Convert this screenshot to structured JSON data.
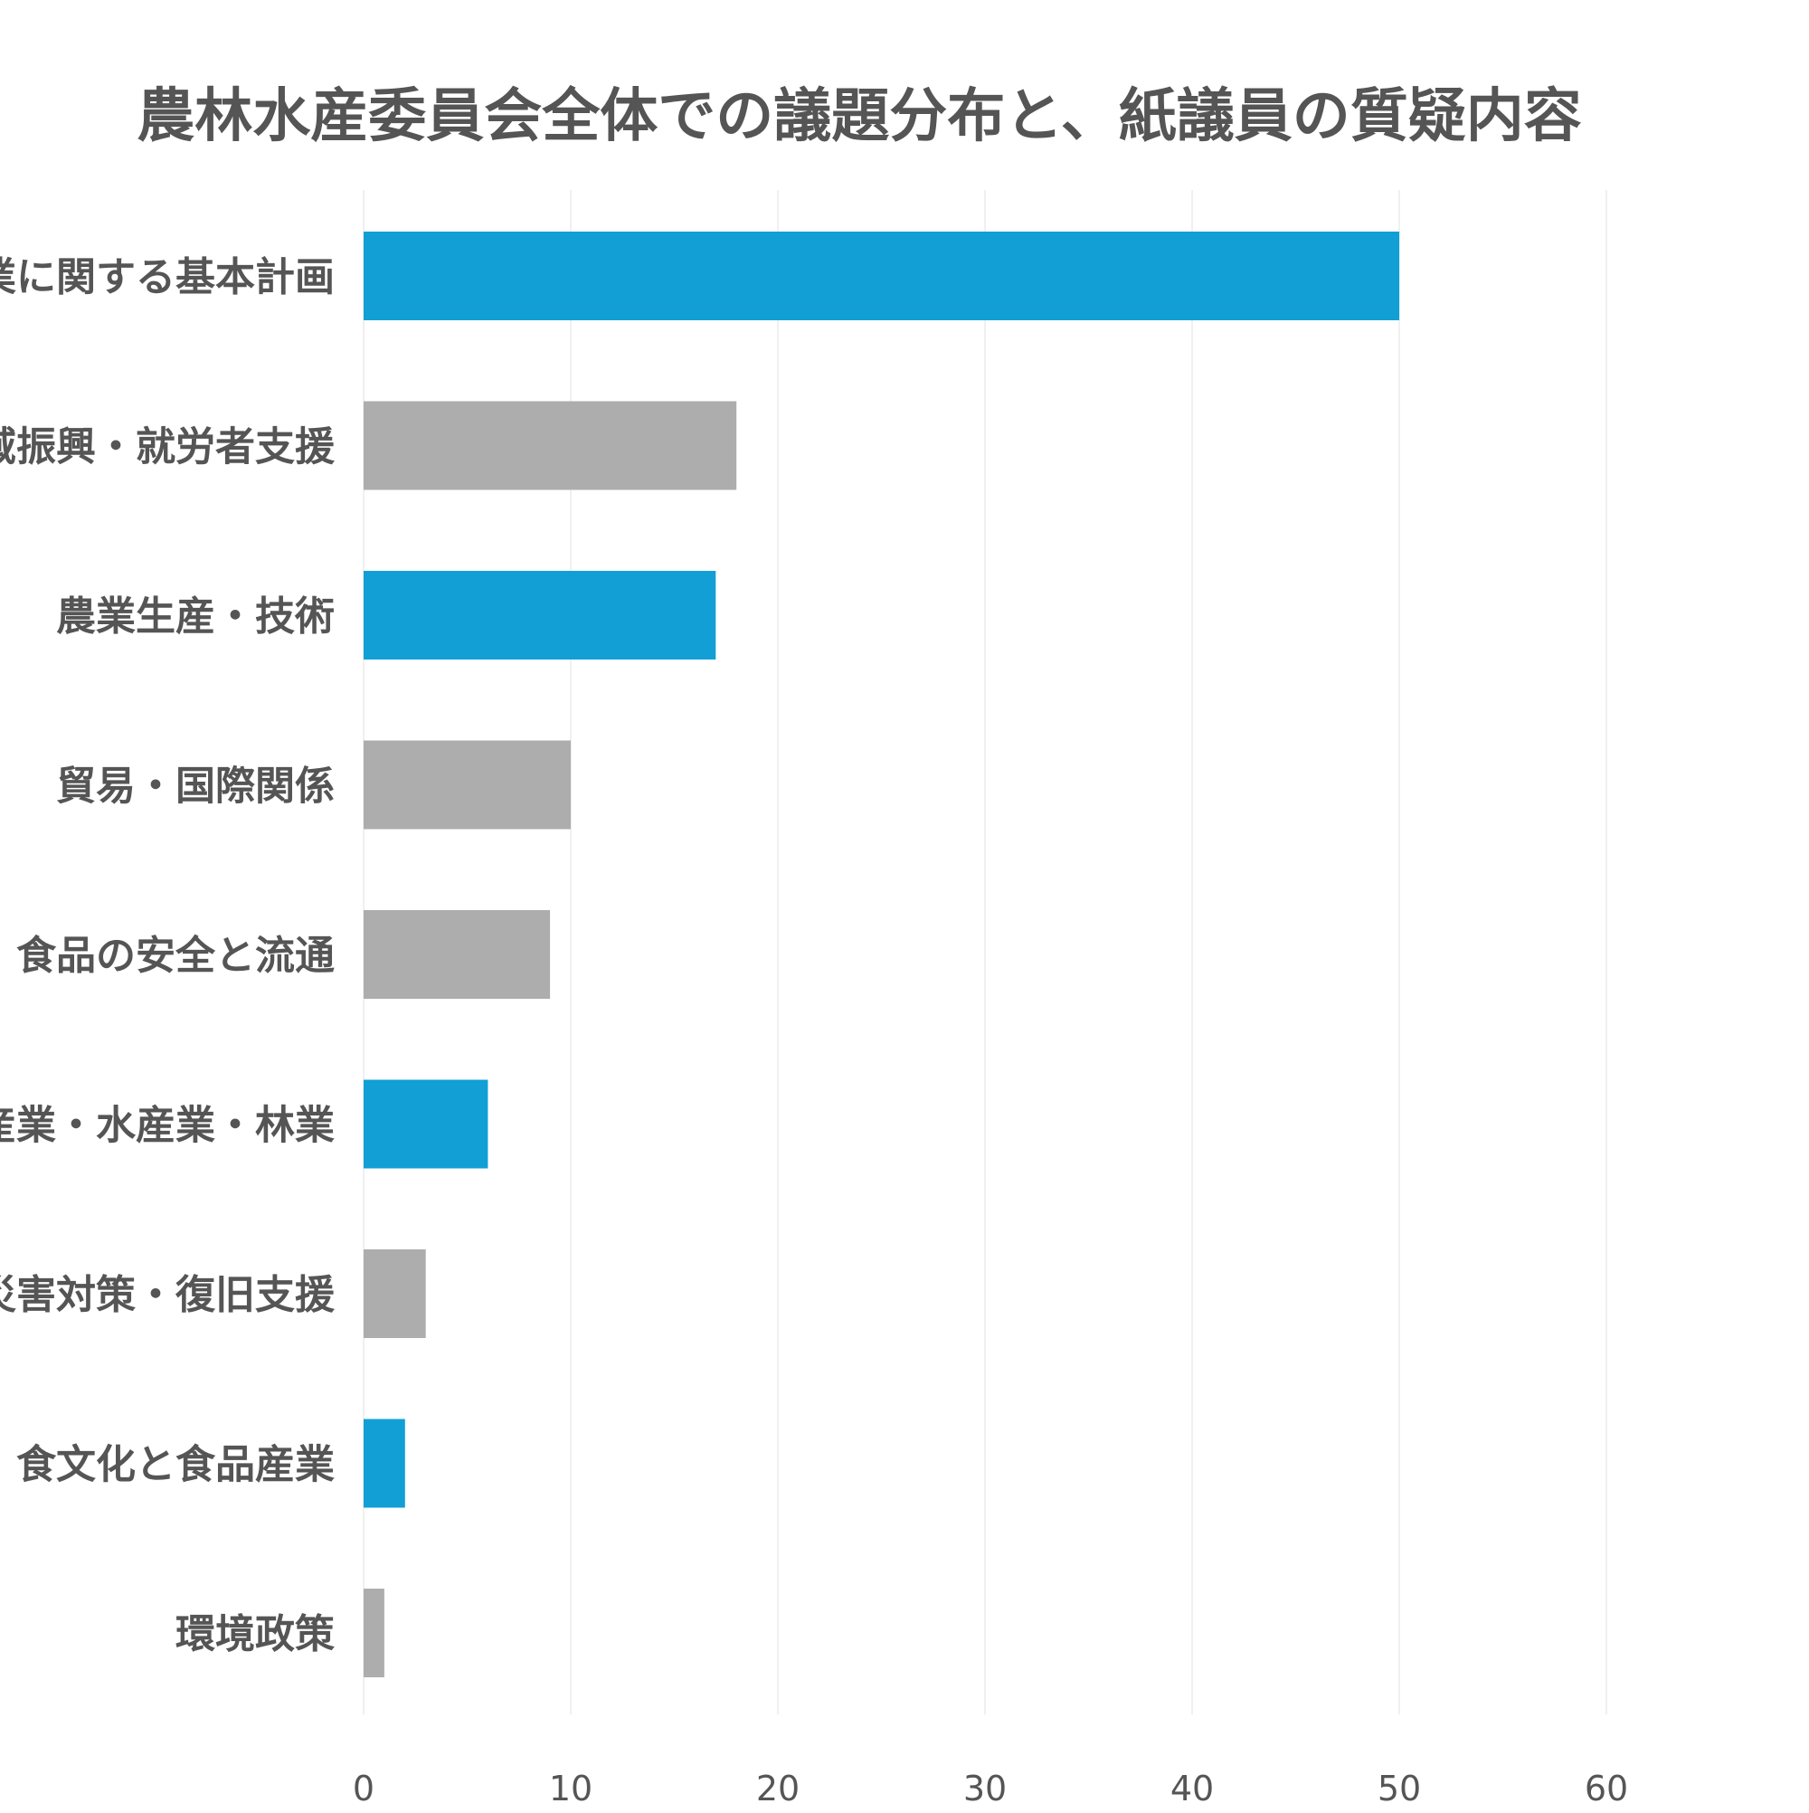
{
  "chart_data": {
    "type": "bar",
    "orientation": "horizontal",
    "title": "農林水産委員会全体での議題分布と、紙議員の質疑内容",
    "xlabel": "",
    "ylabel": "",
    "xlim": [
      0,
      70
    ],
    "x_ticks": [
      0,
      10,
      20,
      30,
      40,
      50,
      60
    ],
    "grid": true,
    "legend": "none",
    "categories": [
      "農業に関する基本計画",
      "地域振興・就労者支援",
      "農業生産・技術",
      "貿易・国際関係",
      "食品の安全と流通",
      "畜産業・水産業・林業",
      "災害対策・復旧支援",
      "食文化と食品産業",
      "環境政策"
    ],
    "values": [
      50,
      18,
      17,
      10,
      9,
      6,
      3,
      2,
      1
    ],
    "highlighted": [
      true,
      false,
      true,
      false,
      false,
      true,
      false,
      true,
      false
    ],
    "colors": {
      "highlight": "#119fd6",
      "default": "#adadad",
      "text": "#555555",
      "grid": "#ececec"
    }
  }
}
